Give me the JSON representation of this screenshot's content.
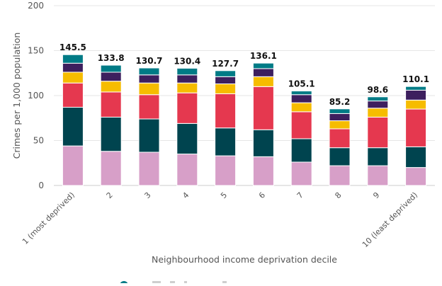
{
  "chart_data": {
    "type": "bar",
    "stacked": true,
    "xlabel": "Neighbourhood income deprivation decile",
    "ylabel": "Crimes per 1,000 population",
    "ylim": [
      0,
      200
    ],
    "yticks": [
      0,
      50,
      100,
      150,
      200
    ],
    "grid": true,
    "categories": [
      "1 (most deprived)",
      "2",
      "3",
      "4",
      "5",
      "6",
      "7",
      "8",
      "9",
      "10 (least deprived)"
    ],
    "totals": [
      145.5,
      133.8,
      130.7,
      130.4,
      127.7,
      136.1,
      105.1,
      85.2,
      98.6,
      110.1
    ],
    "total_labels": [
      "145.5",
      "133.8",
      "130.7",
      "130.4",
      "127.7",
      "136.1",
      "105.1",
      "85.2",
      "98.6",
      "110.1"
    ],
    "series": [
      {
        "color": "#d79fc8",
        "values": [
          44,
          38,
          37,
          35,
          33,
          32,
          26,
          22,
          22,
          20
        ]
      },
      {
        "color": "#00444f",
        "values": [
          43,
          38,
          37,
          34,
          31,
          30,
          26,
          20,
          20,
          23
        ]
      },
      {
        "color": "#e5384f",
        "values": [
          27,
          28,
          27,
          34,
          38,
          48,
          30,
          21,
          34,
          42
        ]
      },
      {
        "color": "#f6bc00",
        "values": [
          12,
          12,
          13,
          11,
          11,
          11,
          10,
          9,
          10,
          10
        ]
      },
      {
        "color": "#3d1f5e",
        "values": [
          10,
          10,
          9,
          9,
          8,
          9,
          9,
          8,
          8,
          11
        ]
      },
      {
        "color": "#007b86",
        "values": [
          9.5,
          7.8,
          7.7,
          7.4,
          6.7,
          6.1,
          4.1,
          5.2,
          4.6,
          4.1
        ]
      }
    ],
    "legend_partial_marker_color": "#007b86"
  }
}
